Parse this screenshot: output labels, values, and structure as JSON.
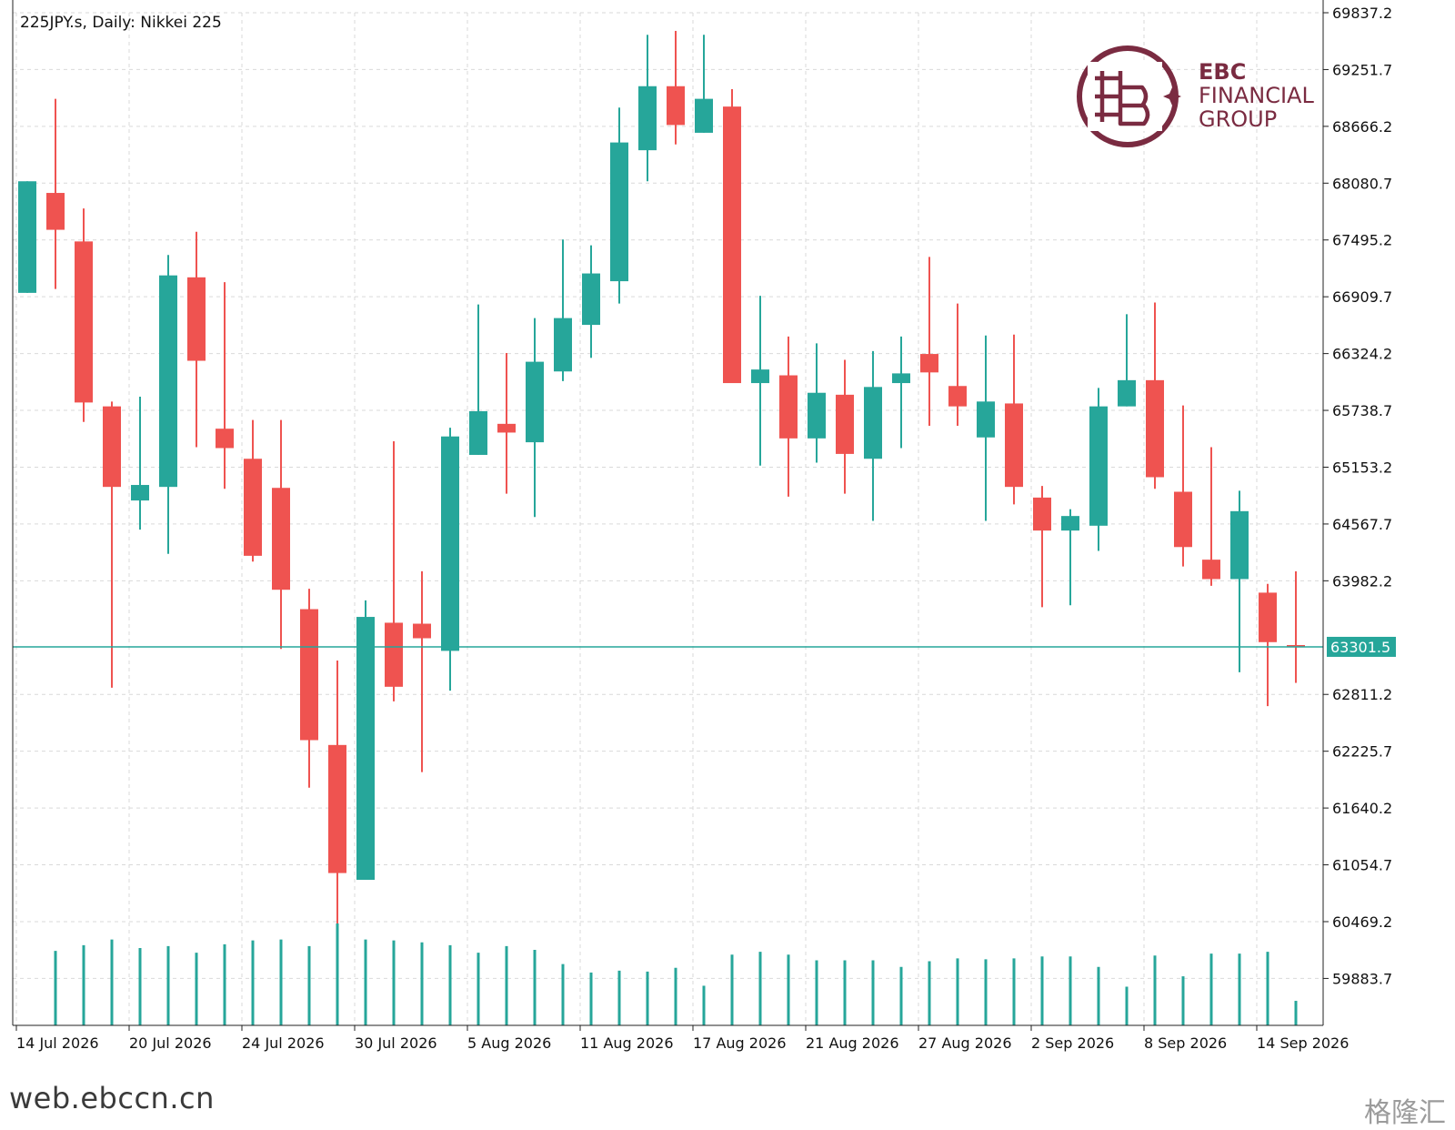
{
  "header": {
    "title": "225JPY.s, Daily:  Nikkei 225"
  },
  "logo": {
    "line1": "EBC",
    "line2": "FINANCIAL",
    "line3": "GROUP",
    "color": "#7a2b41"
  },
  "watermarks": {
    "url": "web.ebccn.cn",
    "brand_cn": "格隆汇"
  },
  "colors": {
    "up": "#26a69a",
    "down": "#ef5350",
    "grid": "#d9d9d9",
    "price_line": "#26a69a"
  },
  "chart_data": {
    "type": "candlestick",
    "symbol": "225JPY.s",
    "timeframe": "Daily",
    "instrument": "Nikkei 225",
    "current_price": 63301.5,
    "current_price_label": "63301.5",
    "ylim": [
      59400,
      69837.2
    ],
    "yticks": [
      69837.2,
      69251.7,
      68666.2,
      68080.7,
      67495.2,
      66909.7,
      66324.2,
      65738.7,
      65153.2,
      64567.7,
      63982.2,
      62811.2,
      62225.7,
      61640.2,
      61054.7,
      60469.2,
      59883.7
    ],
    "ytick_labels": [
      "69837.2",
      "69251.7",
      "68666.2",
      "68080.7",
      "67495.2",
      "66909.7",
      "66324.2",
      "65738.7",
      "65153.2",
      "64567.7",
      "63982.2",
      "62811.2",
      "62225.7",
      "61640.2",
      "61054.7",
      "60469.2",
      "59883.7"
    ],
    "xticks": [
      {
        "index": 0,
        "label": "14 Jul 2026"
      },
      {
        "index": 4,
        "label": "20 Jul 2026"
      },
      {
        "index": 8,
        "label": "24 Jul 2026"
      },
      {
        "index": 12,
        "label": "30 Jul 2026"
      },
      {
        "index": 16,
        "label": "5 Aug 2026"
      },
      {
        "index": 20,
        "label": "11 Aug 2026"
      },
      {
        "index": 24,
        "label": "17 Aug 2026"
      },
      {
        "index": 28,
        "label": "21 Aug 2026"
      },
      {
        "index": 32,
        "label": "27 Aug 2026"
      },
      {
        "index": 36,
        "label": "2 Sep 2026"
      },
      {
        "index": 40,
        "label": "8 Sep 2026"
      },
      {
        "index": 44,
        "label": "14 Sep 2026"
      }
    ],
    "candles": [
      {
        "o": 66950,
        "h": 68100,
        "l": 66950,
        "c": 68100
      },
      {
        "o": 67980,
        "h": 68950,
        "l": 66990,
        "c": 67600
      },
      {
        "o": 67480,
        "h": 67820,
        "l": 65620,
        "c": 65820
      },
      {
        "o": 65780,
        "h": 65830,
        "l": 62880,
        "c": 64950
      },
      {
        "o": 64810,
        "h": 65880,
        "l": 64510,
        "c": 64970
      },
      {
        "o": 64950,
        "h": 67340,
        "l": 64260,
        "c": 67130
      },
      {
        "o": 67110,
        "h": 67580,
        "l": 65360,
        "c": 66250
      },
      {
        "o": 65550,
        "h": 67060,
        "l": 64930,
        "c": 65350
      },
      {
        "o": 65240,
        "h": 65640,
        "l": 64180,
        "c": 64240
      },
      {
        "o": 64940,
        "h": 65640,
        "l": 63280,
        "c": 63890
      },
      {
        "o": 63690,
        "h": 63900,
        "l": 61850,
        "c": 62340
      },
      {
        "o": 62290,
        "h": 63160,
        "l": 60450,
        "c": 60970
      },
      {
        "o": 60900,
        "h": 63780,
        "l": 60900,
        "c": 63610
      },
      {
        "o": 63550,
        "h": 65420,
        "l": 62740,
        "c": 62890
      },
      {
        "o": 63540,
        "h": 64080,
        "l": 62010,
        "c": 63390
      },
      {
        "o": 63260,
        "h": 65560,
        "l": 62850,
        "c": 65470
      },
      {
        "o": 65280,
        "h": 66830,
        "l": 65280,
        "c": 65730
      },
      {
        "o": 65600,
        "h": 66330,
        "l": 64880,
        "c": 65510
      },
      {
        "o": 65410,
        "h": 66690,
        "l": 64640,
        "c": 66240
      },
      {
        "o": 66140,
        "h": 67500,
        "l": 66040,
        "c": 66690
      },
      {
        "o": 66620,
        "h": 67440,
        "l": 66280,
        "c": 67150
      },
      {
        "o": 67070,
        "h": 68860,
        "l": 66840,
        "c": 68500
      },
      {
        "o": 68420,
        "h": 69610,
        "l": 68100,
        "c": 69080
      },
      {
        "o": 69080,
        "h": 69650,
        "l": 68480,
        "c": 68680
      },
      {
        "o": 68600,
        "h": 69610,
        "l": 68600,
        "c": 68950
      },
      {
        "o": 68870,
        "h": 69050,
        "l": 66020,
        "c": 66020
      },
      {
        "o": 66020,
        "h": 66920,
        "l": 65170,
        "c": 66160
      },
      {
        "o": 66100,
        "h": 66500,
        "l": 64850,
        "c": 65450
      },
      {
        "o": 65450,
        "h": 66430,
        "l": 65200,
        "c": 65920
      },
      {
        "o": 65900,
        "h": 66260,
        "l": 64880,
        "c": 65290
      },
      {
        "o": 65240,
        "h": 66350,
        "l": 64600,
        "c": 65980
      },
      {
        "o": 66020,
        "h": 66500,
        "l": 65350,
        "c": 66120
      },
      {
        "o": 66320,
        "h": 67320,
        "l": 65580,
        "c": 66130
      },
      {
        "o": 65990,
        "h": 66840,
        "l": 65580,
        "c": 65780
      },
      {
        "o": 65460,
        "h": 66510,
        "l": 64600,
        "c": 65830
      },
      {
        "o": 65810,
        "h": 66520,
        "l": 64770,
        "c": 64950
      },
      {
        "o": 64840,
        "h": 64960,
        "l": 63710,
        "c": 64500
      },
      {
        "o": 64500,
        "h": 64720,
        "l": 63730,
        "c": 64650
      },
      {
        "o": 64550,
        "h": 65970,
        "l": 64290,
        "c": 65780
      },
      {
        "o": 65780,
        "h": 66730,
        "l": 65780,
        "c": 66050
      },
      {
        "o": 66050,
        "h": 66850,
        "l": 64930,
        "c": 65050
      },
      {
        "o": 64900,
        "h": 65790,
        "l": 64130,
        "c": 64330
      },
      {
        "o": 64200,
        "h": 65360,
        "l": 63930,
        "c": 64000
      },
      {
        "o": 64000,
        "h": 64910,
        "l": 63040,
        "c": 64700
      },
      {
        "o": 63860,
        "h": 63950,
        "l": 62690,
        "c": 63350
      },
      {
        "o": 63320,
        "h": 64080,
        "l": 62930,
        "c": 63301.5
      }
    ],
    "volume": [
      0,
      79,
      85,
      91,
      82,
      84,
      77,
      86,
      90,
      91,
      84,
      108,
      91,
      90,
      88,
      85,
      77,
      84,
      80,
      65,
      56,
      58,
      57,
      61,
      42,
      75,
      78,
      75,
      69,
      69,
      69,
      62,
      68,
      71,
      70,
      71,
      73,
      73,
      62,
      41,
      74,
      52,
      76,
      76,
      78,
      26
    ]
  }
}
